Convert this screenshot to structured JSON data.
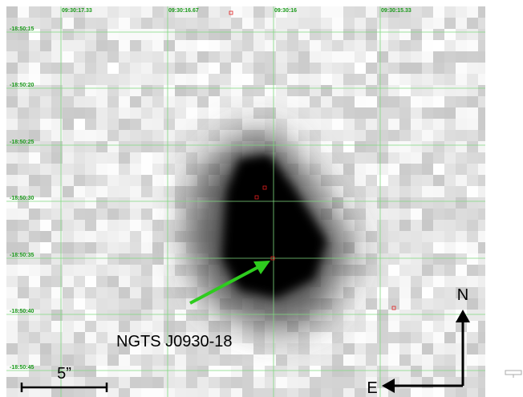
{
  "ra_labels": [
    "09:30:17.33",
    "09:30:16.67",
    "09:30:16",
    "09:30:15.33"
  ],
  "dec_labels": [
    "-18:50:15",
    "-18:50:20",
    "-18:50:25",
    "-18:50:30",
    "-18:50:35",
    "-18:50:40",
    "-18:50:45"
  ],
  "target_label": "NGTS J0930-18",
  "scale_label": "5”",
  "compass": {
    "north": "N",
    "east": "E"
  }
}
